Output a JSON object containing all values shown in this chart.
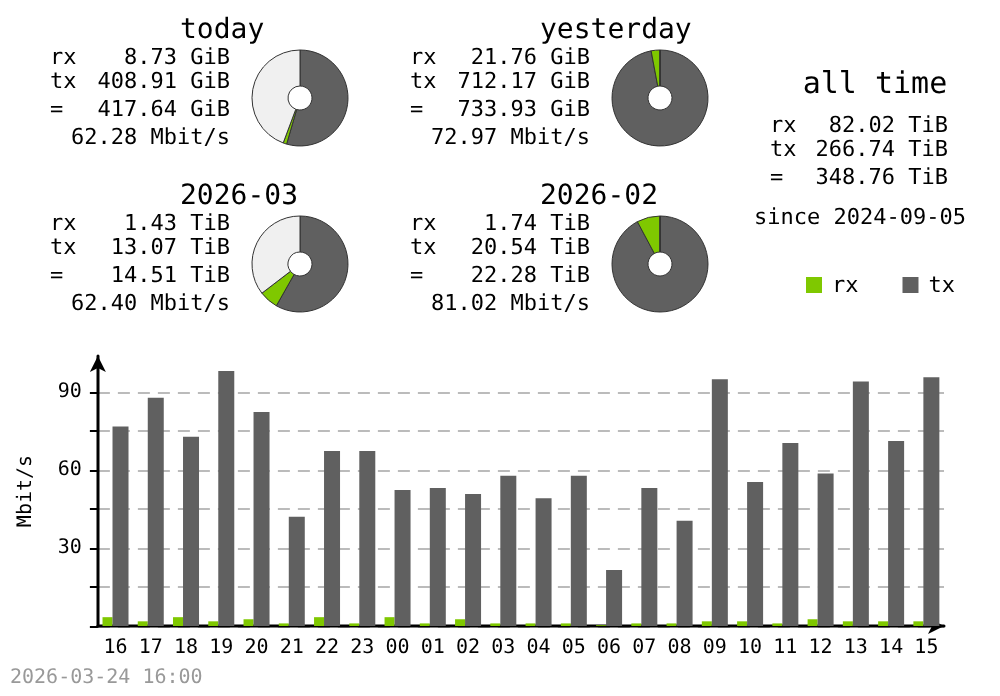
{
  "chart_data": [
    {
      "type": "donut",
      "title": "today",
      "categories": [
        null,
        null,
        null
      ],
      "values": [
        54.5,
        1.2,
        44.3
      ],
      "colors": [
        "#606060",
        "#7fc800",
        "#f0f0f0"
      ],
      "annotations": [
        "rx 8.73 GiB",
        "tx 408.91 GiB",
        "= 417.64 GiB",
        "62.28 Mbit/s"
      ]
    },
    {
      "type": "donut",
      "title": "yesterday",
      "categories": [
        null,
        null,
        null
      ],
      "values": [
        97.04,
        2.96,
        0
      ],
      "colors": [
        "#606060",
        "#7fc800",
        "#f0f0f0"
      ],
      "annotations": [
        "rx 21.76 GiB",
        "tx 712.17 GiB",
        "= 733.93 GiB",
        "72.97 Mbit/s"
      ]
    },
    {
      "type": "other",
      "title": "all time",
      "annotations": [
        "rx 82.02 TiB",
        "tx 266.74 TiB",
        "= 348.76 TiB",
        "since 2024-09-05"
      ]
    },
    {
      "type": "donut",
      "title": "2026-03",
      "categories": [
        null,
        null,
        null
      ],
      "values": [
        58.2,
        6.4,
        35.4
      ],
      "colors": [
        "#606060",
        "#7fc800",
        "#f0f0f0"
      ],
      "annotations": [
        "rx 1.43 TiB",
        "tx 13.07 TiB",
        "= 14.51 TiB",
        "62.40 Mbit/s"
      ]
    },
    {
      "type": "donut",
      "title": "2026-02",
      "categories": [
        null,
        null,
        null
      ],
      "values": [
        92.19,
        7.81,
        0
      ],
      "colors": [
        "#606060",
        "#7fc800",
        "#f0f0f0"
      ],
      "annotations": [
        "rx 1.74 TiB",
        "tx 20.54 TiB",
        "= 22.28 TiB",
        "81.02 Mbit/s"
      ]
    },
    {
      "type": "bar",
      "categories": [
        "16",
        "17",
        "18",
        "19",
        "20",
        "21",
        "22",
        "23",
        "00",
        "01",
        "02",
        "03",
        "04",
        "05",
        "06",
        "07",
        "08",
        "09",
        "10",
        "11",
        "12",
        "13",
        "14",
        "15"
      ],
      "series": [
        {
          "name": "rx",
          "color": "#7fc800",
          "values": [
            3.4,
            1.8,
            3.4,
            1.8,
            2.6,
            1,
            3.4,
            1,
            3.4,
            1,
            2.6,
            1,
            1,
            1,
            0.3,
            1,
            1,
            1.8,
            1.8,
            1,
            2.6,
            1.8,
            1.8,
            1.8
          ]
        },
        {
          "name": "tx",
          "color": "#606060",
          "values": [
            76.8,
            87.9,
            72.9,
            98.2,
            82.4,
            42.1,
            67.4,
            67.4,
            52.4,
            53.2,
            50.8,
            57.9,
            49.2,
            57.9,
            21.6,
            53.2,
            40.5,
            95.0,
            55.5,
            70.5,
            58.7,
            94.2,
            71.3,
            95.8
          ]
        }
      ],
      "ylabel": "Mbit/s",
      "ylim": [
        0,
        104
      ],
      "yticks": [
        {
          "value": 0,
          "label": null
        },
        {
          "value": 15,
          "label": null
        },
        30,
        {
          "value": 45,
          "label": null
        },
        60,
        {
          "value": 75,
          "label": null
        },
        90
      ],
      "grid": "y",
      "legend": "top right",
      "annotations": [
        "2026-03-24 16:00"
      ]
    }
  ]
}
